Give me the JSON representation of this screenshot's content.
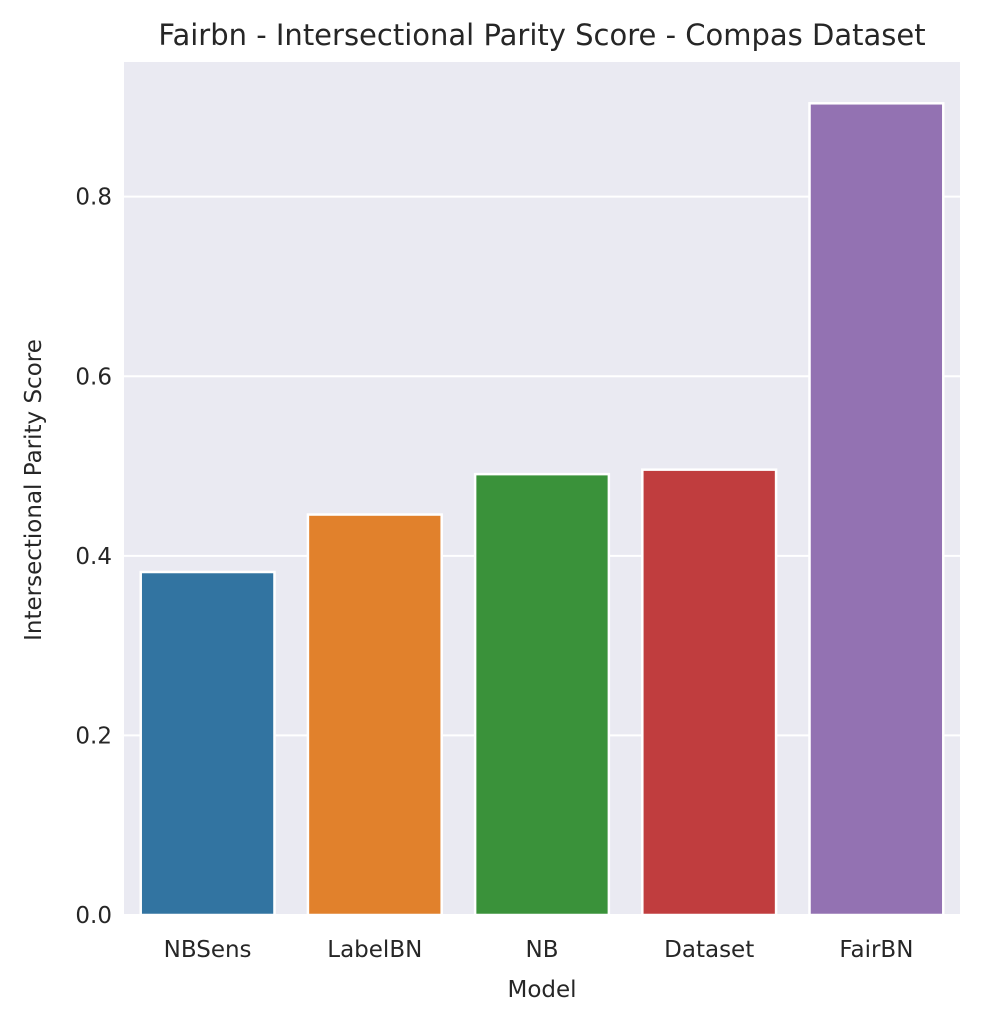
{
  "chart_data": {
    "type": "bar",
    "title": "Fairbn - Intersectional Parity Score - Compas Dataset",
    "xlabel": "Model",
    "ylabel": "Intersectional Parity Score",
    "categories": [
      "NBSens",
      "LabelBN",
      "NB",
      "Dataset",
      "FairBN"
    ],
    "values": [
      0.382,
      0.446,
      0.491,
      0.496,
      0.904
    ],
    "colors": [
      "#3274a1",
      "#e1812c",
      "#3a923a",
      "#c03d3e",
      "#9372b2"
    ],
    "ylim": [
      0,
      0.95
    ],
    "yticks": [
      0.0,
      0.2,
      0.4,
      0.6,
      0.8
    ],
    "ytick_labels": [
      "0.0",
      "0.2",
      "0.4",
      "0.6",
      "0.8"
    ],
    "grid": true,
    "background": "#eaeaf2"
  }
}
